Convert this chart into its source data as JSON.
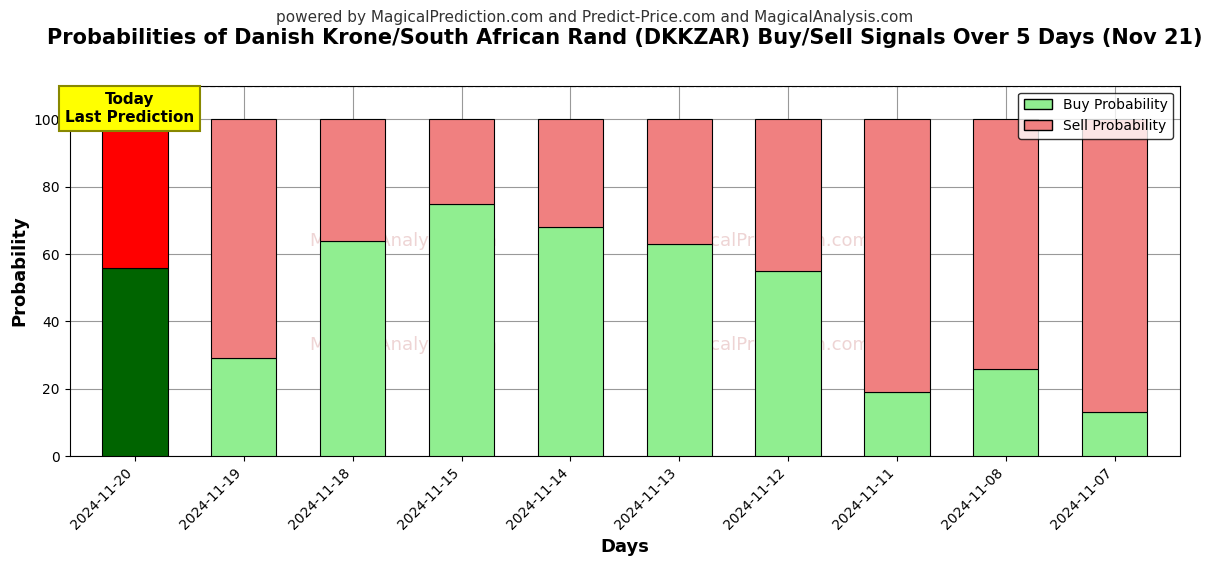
{
  "title": "Probabilities of Danish Krone/South African Rand (DKKZAR) Buy/Sell Signals Over 5 Days (Nov 21)",
  "subtitle": "powered by MagicalPrediction.com and Predict-Price.com and MagicalAnalysis.com",
  "xlabel": "Days",
  "ylabel": "Probability",
  "dates": [
    "2024-11-20",
    "2024-11-19",
    "2024-11-18",
    "2024-11-15",
    "2024-11-14",
    "2024-11-13",
    "2024-11-12",
    "2024-11-11",
    "2024-11-08",
    "2024-11-07"
  ],
  "buy_values": [
    56,
    29,
    64,
    75,
    68,
    63,
    55,
    19,
    26,
    13
  ],
  "sell_values": [
    44,
    71,
    36,
    25,
    32,
    37,
    45,
    81,
    74,
    87
  ],
  "buy_color_today": "#006400",
  "sell_color_today": "#FF0000",
  "buy_color_other": "#90EE90",
  "sell_color_other": "#F08080",
  "today_annotation": "Today\nLast Prediction",
  "today_annotation_bg": "#FFFF00",
  "ylim": [
    0,
    110
  ],
  "yticks": [
    0,
    20,
    40,
    60,
    80,
    100
  ],
  "dashed_line_y": 110,
  "legend_buy": "Buy Probability",
  "legend_sell": "Sell Probability",
  "bar_width": 0.6,
  "bar_edgecolor": "#000000",
  "grid_color": "#999999",
  "bg_color": "#ffffff",
  "title_fontsize": 15,
  "subtitle_fontsize": 11,
  "axis_label_fontsize": 13,
  "tick_fontsize": 10,
  "legend_fontsize": 10,
  "watermark_color": [
    0.78,
    0.45,
    0.45
  ],
  "watermark_alpha": 0.3
}
